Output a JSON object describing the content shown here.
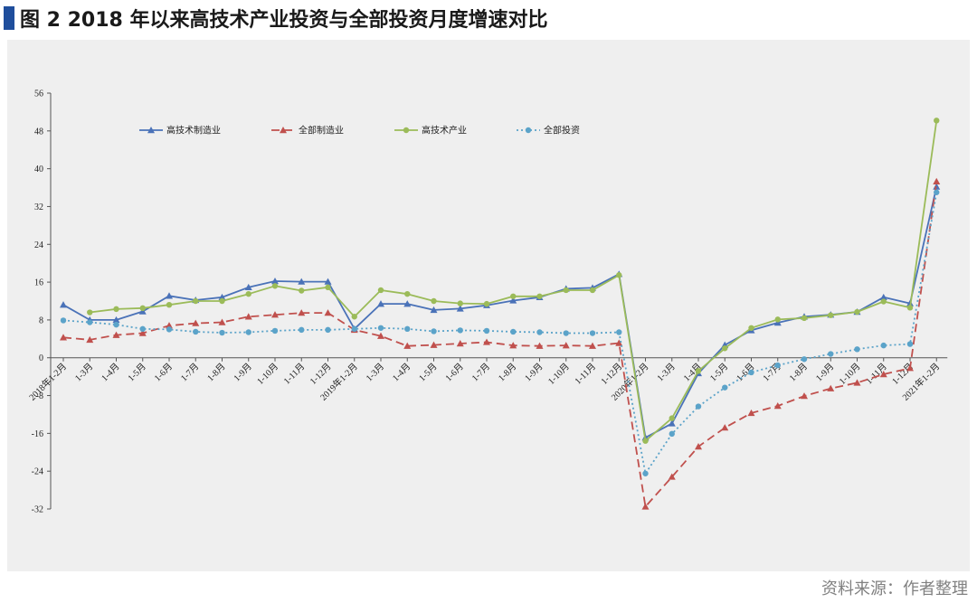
{
  "figure": {
    "title": "图 2  2018 年以来高技术产业投资与全部投资月度增速对比",
    "source": "资料来源：作者整理",
    "accent_color": "#1f4e9c",
    "panel_color": "#efefef"
  },
  "chart_data": {
    "type": "line",
    "title": "",
    "xlabel": "",
    "ylabel": "",
    "ylim": [
      -32,
      56
    ],
    "yticks": [
      -32,
      -24,
      -16,
      -8,
      0,
      8,
      16,
      24,
      32,
      40,
      48,
      56
    ],
    "grid": false,
    "legend_position": "top-left",
    "categories": [
      "2018年1-2月",
      "1-3月",
      "1-4月",
      "1-5月",
      "1-6月",
      "1-7月",
      "1-8月",
      "1-9月",
      "1-10月",
      "1-11月",
      "1-12月",
      "2019年1-2月",
      "1-3月",
      "1-4月",
      "1-5月",
      "1-6月",
      "1-7月",
      "1-8月",
      "1-9月",
      "1-10月",
      "1-11月",
      "1-12月",
      "2020年1-2月",
      "1-3月",
      "1-4月",
      "1-5月",
      "1-6月",
      "1-7月",
      "1-8月",
      "1-9月",
      "1-10月",
      "1-11月",
      "1-12月",
      "2021年1-2月"
    ],
    "series": [
      {
        "name": "高技术制造业",
        "color": "#4a72b8",
        "marker": "triangle",
        "dash": "solid",
        "values": [
          11.2,
          8.0,
          8.0,
          9.8,
          13.1,
          12.2,
          12.8,
          14.9,
          16.2,
          16.1,
          16.1,
          6.1,
          11.4,
          11.4,
          10.1,
          10.4,
          11.1,
          12.1,
          12.8,
          14.6,
          14.8,
          17.7,
          -16.9,
          -13.9,
          -3.3,
          2.7,
          5.8,
          7.4,
          8.7,
          9.1,
          9.7,
          12.8,
          11.5,
          36.2
        ]
      },
      {
        "name": "全部制造业",
        "color": "#c0504d",
        "marker": "triangle",
        "dash": "dashed",
        "values": [
          4.3,
          3.8,
          4.8,
          5.2,
          6.8,
          7.3,
          7.5,
          8.7,
          9.1,
          9.5,
          9.5,
          5.9,
          4.6,
          2.5,
          2.7,
          3.0,
          3.3,
          2.6,
          2.5,
          2.6,
          2.5,
          3.1,
          -31.5,
          -25.2,
          -18.8,
          -14.8,
          -11.7,
          -10.2,
          -8.1,
          -6.5,
          -5.3,
          -3.5,
          -2.2,
          37.3
        ]
      },
      {
        "name": "高技术产业",
        "color": "#9bbb59",
        "marker": "circle",
        "dash": "solid",
        "values": [
          null,
          9.6,
          10.3,
          10.5,
          11.2,
          12.0,
          12.0,
          13.5,
          15.2,
          14.2,
          14.9,
          8.7,
          14.3,
          13.5,
          12.0,
          11.5,
          11.4,
          13.0,
          13.0,
          14.3,
          14.3,
          17.5,
          -17.6,
          -12.8,
          -2.8,
          2.0,
          6.3,
          8.1,
          8.4,
          9.0,
          9.7,
          11.9,
          10.6,
          50.2
        ]
      },
      {
        "name": "全部投资",
        "color": "#5ba3c9",
        "marker": "circle",
        "dash": "dotted",
        "values": [
          7.9,
          7.5,
          7.0,
          6.1,
          6.0,
          5.5,
          5.3,
          5.4,
          5.7,
          5.9,
          5.9,
          6.1,
          6.3,
          6.1,
          5.6,
          5.8,
          5.7,
          5.5,
          5.4,
          5.2,
          5.2,
          5.4,
          -24.5,
          -16.1,
          -10.3,
          -6.3,
          -3.1,
          -1.6,
          -0.3,
          0.8,
          1.8,
          2.6,
          2.9,
          35.0
        ]
      }
    ]
  }
}
